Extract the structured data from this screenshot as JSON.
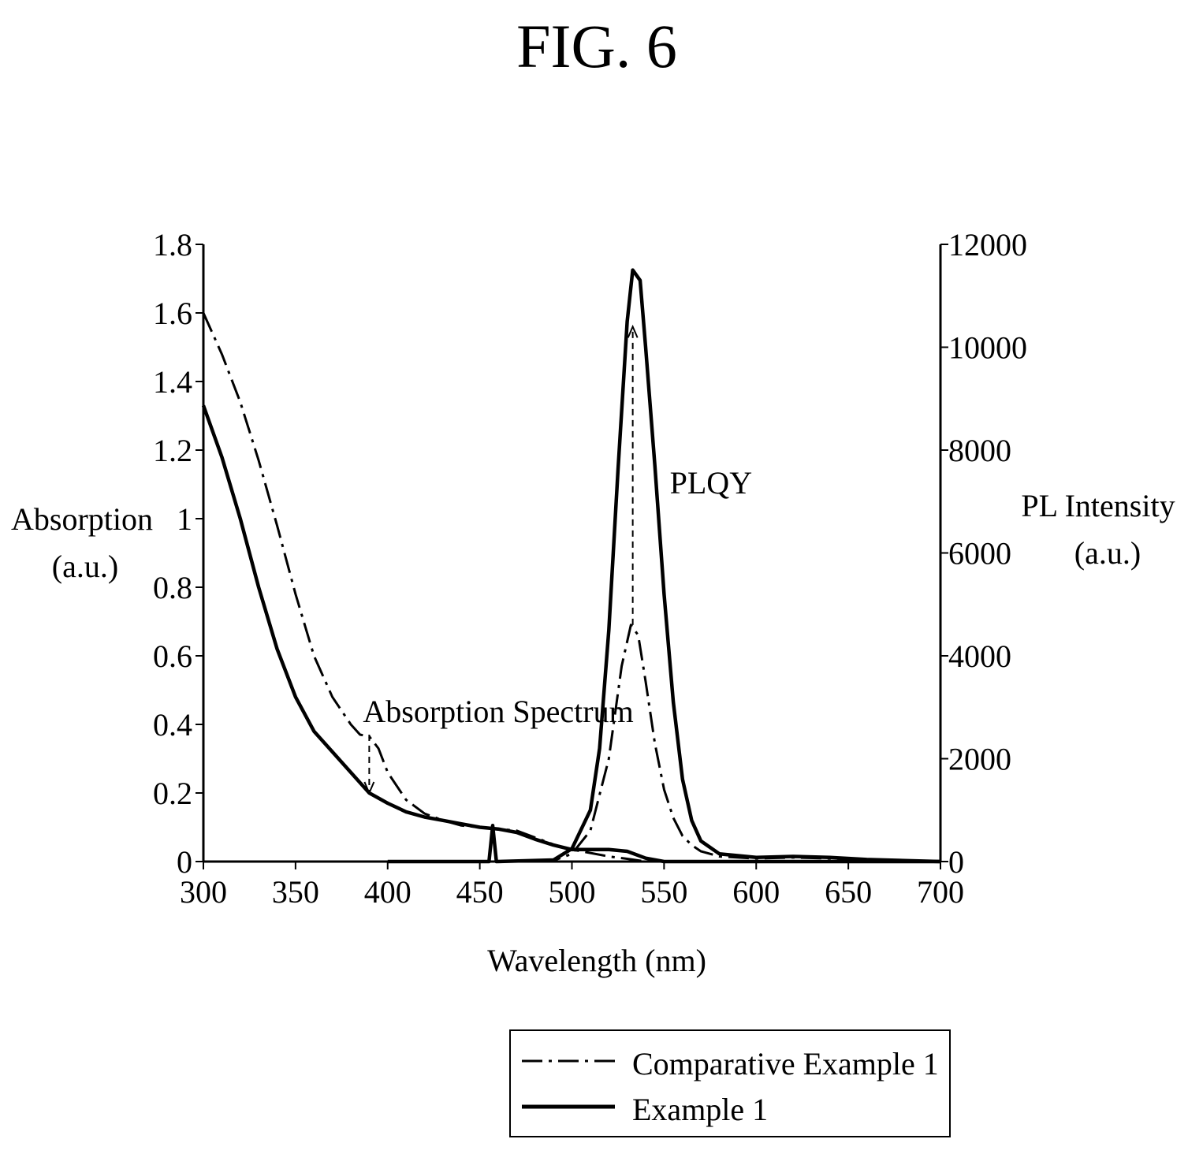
{
  "figure_title": "FIG. 6",
  "chart_data": {
    "type": "line",
    "title": "",
    "xlabel": "Wavelength (nm)",
    "ylabel_left": [
      "Absorption",
      "(a.u.)"
    ],
    "ylabel_right": [
      "PL Intensity",
      "(a.u.)"
    ],
    "xlim": [
      300,
      700
    ],
    "ylim_left": [
      0,
      1.8
    ],
    "ylim_right": [
      0,
      12000
    ],
    "x_ticks": [
      300,
      350,
      400,
      450,
      500,
      550,
      600,
      650,
      700
    ],
    "y_left_ticks": [
      "0",
      "0.2",
      "0.4",
      "0.6",
      "0.8",
      "1",
      "1.2",
      "1.4",
      "1.6",
      "1.8"
    ],
    "y_right_ticks": [
      "0",
      "2000",
      "4000",
      "6000",
      "8000",
      "10000",
      "12000"
    ],
    "grid": false,
    "legend_position": "bottom-right, below plot",
    "annotations": [
      {
        "text": "Absorption Spectrum",
        "x": 390,
        "y_abs": 0.37,
        "arrow_to_abs": 0.2
      },
      {
        "text": "PLQY",
        "x": 533,
        "y_pl": 4600,
        "arrow_to_pl": 10400
      }
    ],
    "series": [
      {
        "name": "Comparative Example 1",
        "style": "dash-dot",
        "absorption": [
          [
            300,
            1.6
          ],
          [
            310,
            1.48
          ],
          [
            320,
            1.34
          ],
          [
            330,
            1.17
          ],
          [
            340,
            0.98
          ],
          [
            350,
            0.78
          ],
          [
            360,
            0.6
          ],
          [
            370,
            0.48
          ],
          [
            380,
            0.4
          ],
          [
            385,
            0.37
          ],
          [
            390,
            0.365
          ],
          [
            395,
            0.33
          ],
          [
            400,
            0.26
          ],
          [
            410,
            0.18
          ],
          [
            420,
            0.14
          ],
          [
            430,
            0.12
          ],
          [
            440,
            0.105
          ],
          [
            450,
            0.1
          ],
          [
            460,
            0.095
          ],
          [
            470,
            0.09
          ],
          [
            480,
            0.07
          ],
          [
            490,
            0.05
          ],
          [
            500,
            0.035
          ],
          [
            510,
            0.025
          ],
          [
            520,
            0.015
          ],
          [
            530,
            0.008
          ],
          [
            540,
            0.0
          ],
          [
            700,
            0.0
          ]
        ],
        "pl": [
          [
            400,
            0
          ],
          [
            450,
            0
          ],
          [
            455,
            0
          ],
          [
            457,
            700
          ],
          [
            459,
            0
          ],
          [
            490,
            20
          ],
          [
            500,
            150
          ],
          [
            510,
            600
          ],
          [
            520,
            2000
          ],
          [
            527,
            3800
          ],
          [
            532,
            4600
          ],
          [
            536,
            4400
          ],
          [
            540,
            3500
          ],
          [
            545,
            2300
          ],
          [
            550,
            1400
          ],
          [
            555,
            850
          ],
          [
            560,
            500
          ],
          [
            565,
            320
          ],
          [
            570,
            200
          ],
          [
            580,
            100
          ],
          [
            600,
            60
          ],
          [
            620,
            80
          ],
          [
            640,
            60
          ],
          [
            660,
            40
          ],
          [
            700,
            0
          ]
        ]
      },
      {
        "name": "Example 1",
        "style": "solid",
        "absorption": [
          [
            300,
            1.33
          ],
          [
            310,
            1.18
          ],
          [
            320,
            1.0
          ],
          [
            330,
            0.8
          ],
          [
            340,
            0.62
          ],
          [
            350,
            0.48
          ],
          [
            360,
            0.38
          ],
          [
            370,
            0.32
          ],
          [
            380,
            0.26
          ],
          [
            390,
            0.2
          ],
          [
            400,
            0.17
          ],
          [
            410,
            0.145
          ],
          [
            420,
            0.13
          ],
          [
            430,
            0.12
          ],
          [
            440,
            0.11
          ],
          [
            450,
            0.1
          ],
          [
            460,
            0.095
          ],
          [
            470,
            0.085
          ],
          [
            480,
            0.065
          ],
          [
            490,
            0.048
          ],
          [
            500,
            0.035
          ],
          [
            510,
            0.035
          ],
          [
            520,
            0.035
          ],
          [
            530,
            0.03
          ],
          [
            540,
            0.01
          ],
          [
            550,
            0.0
          ],
          [
            700,
            0.0
          ]
        ],
        "pl": [
          [
            400,
            0
          ],
          [
            450,
            0
          ],
          [
            455,
            0
          ],
          [
            457,
            700
          ],
          [
            459,
            0
          ],
          [
            490,
            30
          ],
          [
            500,
            250
          ],
          [
            510,
            1000
          ],
          [
            515,
            2200
          ],
          [
            520,
            4500
          ],
          [
            525,
            7600
          ],
          [
            530,
            10500
          ],
          [
            533,
            11500
          ],
          [
            537,
            11300
          ],
          [
            540,
            10000
          ],
          [
            545,
            7700
          ],
          [
            550,
            5200
          ],
          [
            555,
            3100
          ],
          [
            560,
            1600
          ],
          [
            565,
            800
          ],
          [
            570,
            400
          ],
          [
            580,
            150
          ],
          [
            600,
            80
          ],
          [
            620,
            100
          ],
          [
            640,
            80
          ],
          [
            660,
            40
          ],
          [
            700,
            0
          ]
        ]
      }
    ]
  }
}
